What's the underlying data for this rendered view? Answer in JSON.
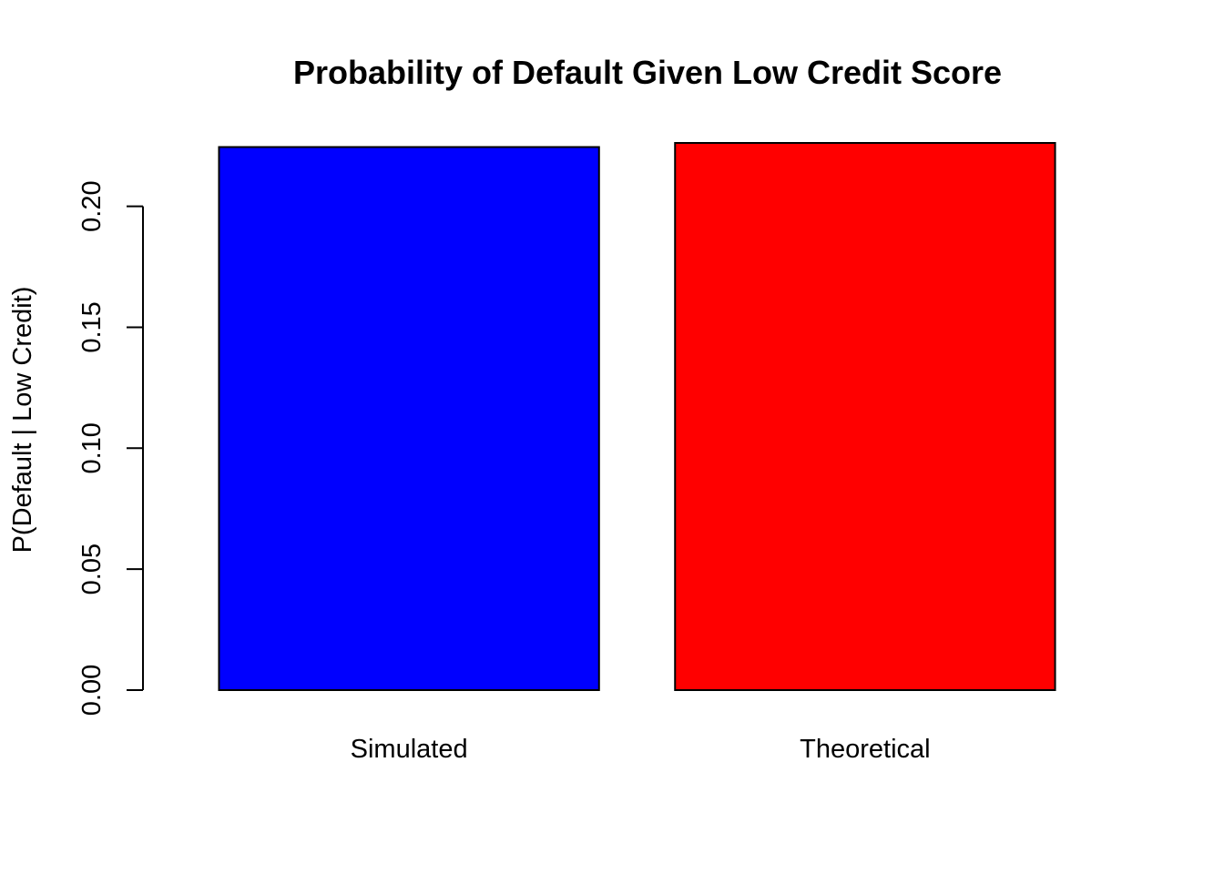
{
  "chart_data": {
    "type": "bar",
    "title": "Probability of Default Given Low Credit Score",
    "xlabel": "",
    "ylabel": "P(Default | Low Credit)",
    "categories": [
      "Simulated",
      "Theoretical"
    ],
    "values": [
      0.2245,
      0.2262
    ],
    "colors": [
      "#0000ff",
      "#ff0000"
    ],
    "ylim": [
      0,
      0.2262
    ],
    "yticks": [
      0.0,
      0.05,
      0.1,
      0.15,
      0.2
    ],
    "ytick_labels": [
      "0.00",
      "0.05",
      "0.10",
      "0.15",
      "0.20"
    ],
    "grid": false,
    "legend": "none"
  }
}
